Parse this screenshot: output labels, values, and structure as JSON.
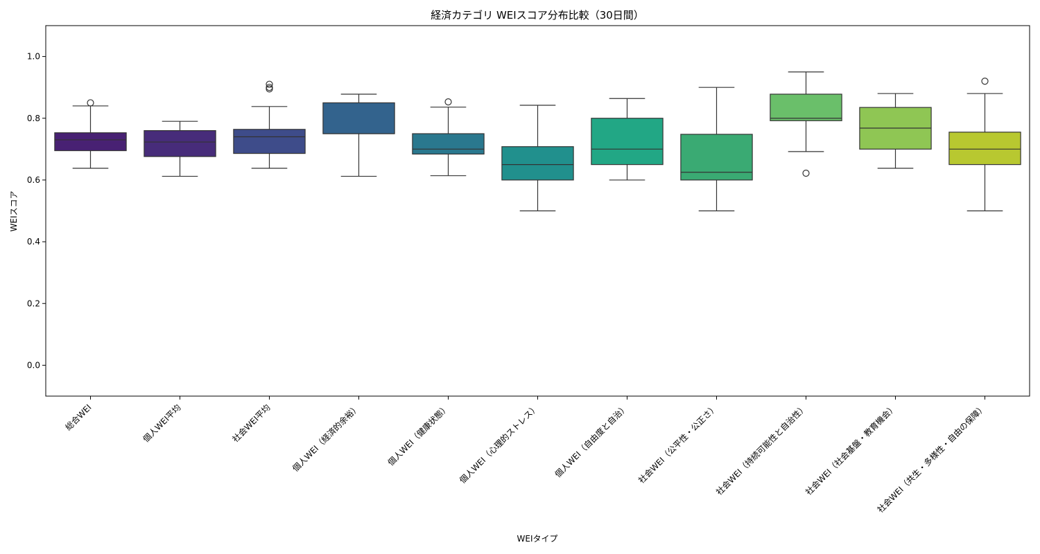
{
  "chart_data": {
    "type": "box",
    "title": "経済カテゴリ WEIスコア分布比較（30日間）",
    "xlabel": "WEIタイプ",
    "ylabel": "WEIスコア",
    "ylim": [
      -0.1,
      1.1
    ],
    "y_ticks": [
      "0.0",
      "0.2",
      "0.4",
      "0.6",
      "0.8",
      "1.0"
    ],
    "grid": false,
    "categories": [
      "総合WEI",
      "個人WEI平均",
      "社会WEI平均",
      "個人WEI（経済的余裕）",
      "個人WEI（健康状態）",
      "個人WEI（心理的ストレス）",
      "個人WEI（自由度と自治）",
      "社会WEI（公平性・公正さ）",
      "社会WEI（持続可能性と自治性）",
      "社会WEI（社会基盤・教育機会）",
      "社会WEI（共生・多様性・自由の保障）"
    ],
    "boxes": [
      {
        "whisker_low": 0.638,
        "q1": 0.695,
        "median": 0.73,
        "q3": 0.753,
        "whisker_high": 0.84,
        "outliers": [
          0.85
        ],
        "color": "#482173"
      },
      {
        "whisker_low": 0.612,
        "q1": 0.676,
        "median": 0.723,
        "q3": 0.76,
        "whisker_high": 0.79,
        "outliers": [],
        "color": "#472c7a"
      },
      {
        "whisker_low": 0.638,
        "q1": 0.686,
        "median": 0.74,
        "q3": 0.764,
        "whisker_high": 0.838,
        "outliers": [
          0.91,
          0.9,
          0.895
        ],
        "color": "#3e4c8a"
      },
      {
        "whisker_low": 0.612,
        "q1": 0.75,
        "median": 0.75,
        "q3": 0.85,
        "whisker_high": 0.878,
        "outliers": [],
        "color": "#33638d"
      },
      {
        "whisker_low": 0.614,
        "q1": 0.684,
        "median": 0.7,
        "q3": 0.75,
        "whisker_high": 0.836,
        "outliers": [
          0.853
        ],
        "color": "#2a788e"
      },
      {
        "whisker_low": 0.5,
        "q1": 0.6,
        "median": 0.65,
        "q3": 0.708,
        "whisker_high": 0.842,
        "outliers": [],
        "color": "#21908d"
      },
      {
        "whisker_low": 0.6,
        "q1": 0.65,
        "median": 0.7,
        "q3": 0.8,
        "whisker_high": 0.864,
        "outliers": [],
        "color": "#22a785"
      },
      {
        "whisker_low": 0.5,
        "q1": 0.6,
        "median": 0.625,
        "q3": 0.748,
        "whisker_high": 0.9,
        "outliers": [],
        "color": "#3aaa73"
      },
      {
        "whisker_low": 0.692,
        "q1": 0.792,
        "median": 0.8,
        "q3": 0.878,
        "whisker_high": 0.95,
        "outliers": [
          0.622
        ],
        "color": "#6abf6a"
      },
      {
        "whisker_low": 0.638,
        "q1": 0.7,
        "median": 0.768,
        "q3": 0.835,
        "whisker_high": 0.88,
        "outliers": [],
        "color": "#8fc654"
      },
      {
        "whisker_low": 0.5,
        "q1": 0.65,
        "median": 0.7,
        "q3": 0.755,
        "whisker_high": 0.88,
        "outliers": [
          0.92
        ],
        "color": "#b8c830"
      }
    ]
  }
}
